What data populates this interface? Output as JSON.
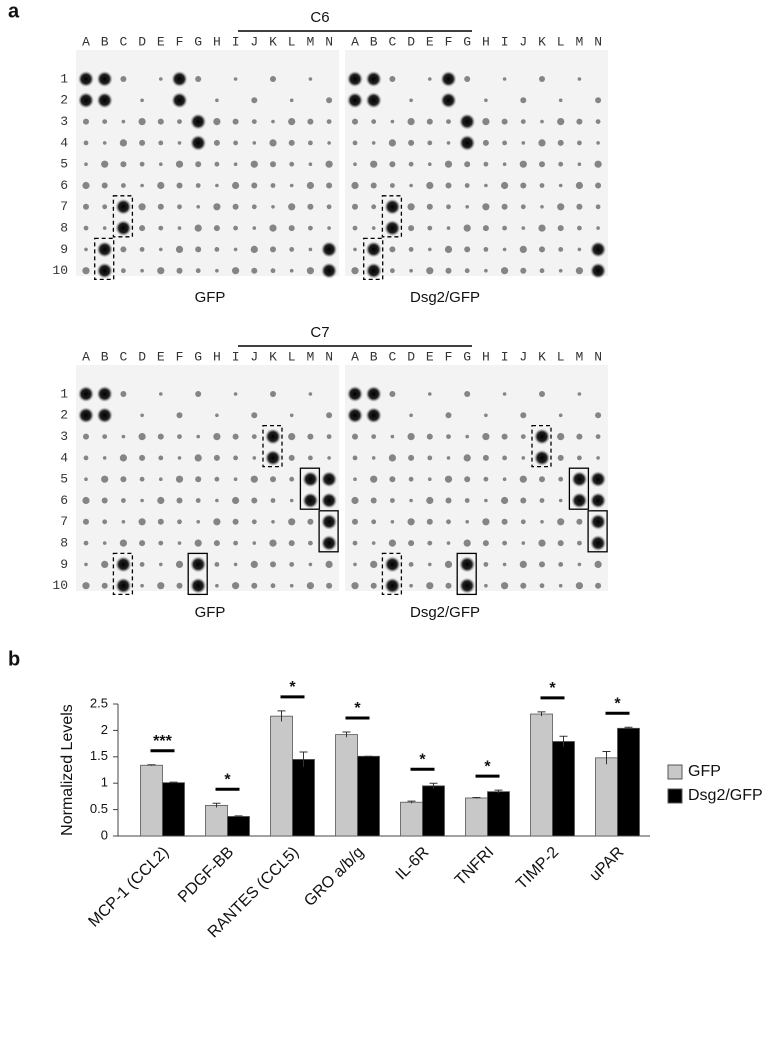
{
  "panel_a": {
    "label": "a",
    "columns": [
      "A",
      "B",
      "C",
      "D",
      "E",
      "F",
      "G",
      "H",
      "I",
      "J",
      "K",
      "L",
      "M",
      "N"
    ],
    "rows": [
      "1",
      "2",
      "3",
      "4",
      "5",
      "6",
      "7",
      "8",
      "9",
      "10"
    ],
    "groups": [
      {
        "title": "C6",
        "blots": [
          "GFP",
          "Dsg2/GFP"
        ]
      },
      {
        "title": "C7",
        "blots": [
          "GFP",
          "Dsg2/GFP"
        ]
      }
    ]
  },
  "chart_data": {
    "type": "bar",
    "label": "b",
    "y_label": "Normalized Levels",
    "categories": [
      "MCP-1 (CCL2)",
      "PDGF-BB",
      "RANTES (CCL5)",
      "GRO a/b/g",
      "IL-6R",
      "TNFRI",
      "TIMP-2",
      "uPAR"
    ],
    "series": [
      {
        "name": "GFP",
        "color": "#c8c8c8",
        "values": [
          1.34,
          0.58,
          2.27,
          1.92,
          0.64,
          0.72,
          2.31,
          1.48
        ],
        "errors": [
          0.01,
          0.04,
          0.1,
          0.05,
          0.02,
          0.01,
          0.04,
          0.12
        ]
      },
      {
        "name": "Dsg2/GFP",
        "color": "#000000",
        "values": [
          1.01,
          0.37,
          1.45,
          1.51,
          0.95,
          0.84,
          1.79,
          2.04
        ],
        "errors": [
          0.01,
          0.01,
          0.14,
          0,
          0.05,
          0.03,
          0.1,
          0.02
        ]
      }
    ],
    "significance": [
      "***",
      "*",
      "*",
      "*",
      "*",
      "*",
      "*",
      "*"
    ],
    "ylim": [
      0,
      2.5
    ],
    "yticks": [
      0,
      0.5,
      1,
      1.5,
      2,
      2.5
    ],
    "legend": "right"
  }
}
